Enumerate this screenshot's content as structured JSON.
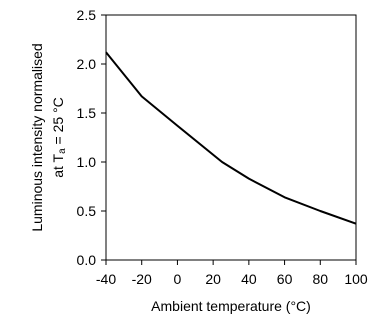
{
  "chart_data": {
    "type": "line",
    "xlabel": "Ambient temperature (°C)",
    "ylabel_line1": "Luminous intensity normalised",
    "ylabel_line2_prefix": "at T",
    "ylabel_line2_subscript": "a",
    "ylabel_line2_suffix": " = 25 °C",
    "xlim": [
      -40,
      100
    ],
    "ylim": [
      0.0,
      2.5
    ],
    "x_ticks": [
      -40,
      -20,
      0,
      20,
      40,
      60,
      80,
      100
    ],
    "x_tick_labels": [
      "-40",
      "-20",
      "0",
      "20",
      "40",
      "60",
      "80",
      "100"
    ],
    "y_ticks": [
      0.0,
      0.5,
      1.0,
      1.5,
      2.0,
      2.5
    ],
    "y_tick_labels": [
      "0.0",
      "0.5",
      "1.0",
      "1.5",
      "2.0",
      "2.5"
    ],
    "grid": false,
    "series": [
      {
        "color": "#000000",
        "x": [
          -40,
          -20,
          0,
          25,
          40,
          60,
          80,
          100
        ],
        "y": [
          2.12,
          1.67,
          1.37,
          1.0,
          0.83,
          0.64,
          0.5,
          0.37
        ]
      }
    ]
  }
}
